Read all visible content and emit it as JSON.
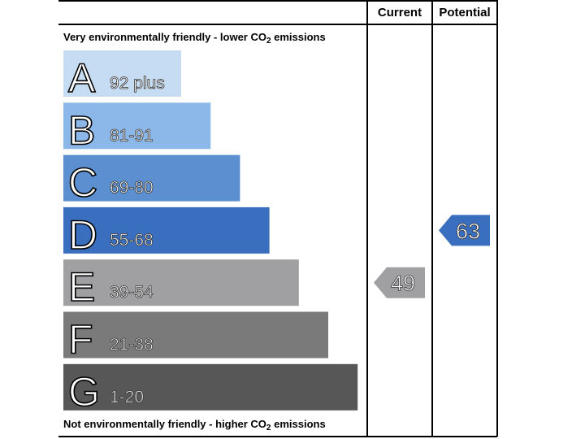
{
  "header": {
    "current": "Current",
    "potential": "Potential"
  },
  "top_note": {
    "before": "Very environmentally friendly - lower CO",
    "sub": "2",
    "after": " emissions"
  },
  "bottom_note": {
    "before": "Not environmentally friendly - higher CO",
    "sub": "2",
    "after": " emissions"
  },
  "bands": [
    {
      "letter": "A",
      "range": "92 plus",
      "color": "#c6dcf2"
    },
    {
      "letter": "B",
      "range": "81-91",
      "color": "#8bb8e8"
    },
    {
      "letter": "C",
      "range": "69-80",
      "color": "#5b8fcf"
    },
    {
      "letter": "D",
      "range": "55-68",
      "color": "#3a6fbf"
    },
    {
      "letter": "E",
      "range": "39-54",
      "color": "#a0a0a2"
    },
    {
      "letter": "F",
      "range": "21-38",
      "color": "#7a7a7a"
    },
    {
      "letter": "G",
      "range": "1-20",
      "color": "#575757"
    }
  ],
  "current": {
    "value": 49
  },
  "potential": {
    "value": 63
  }
}
